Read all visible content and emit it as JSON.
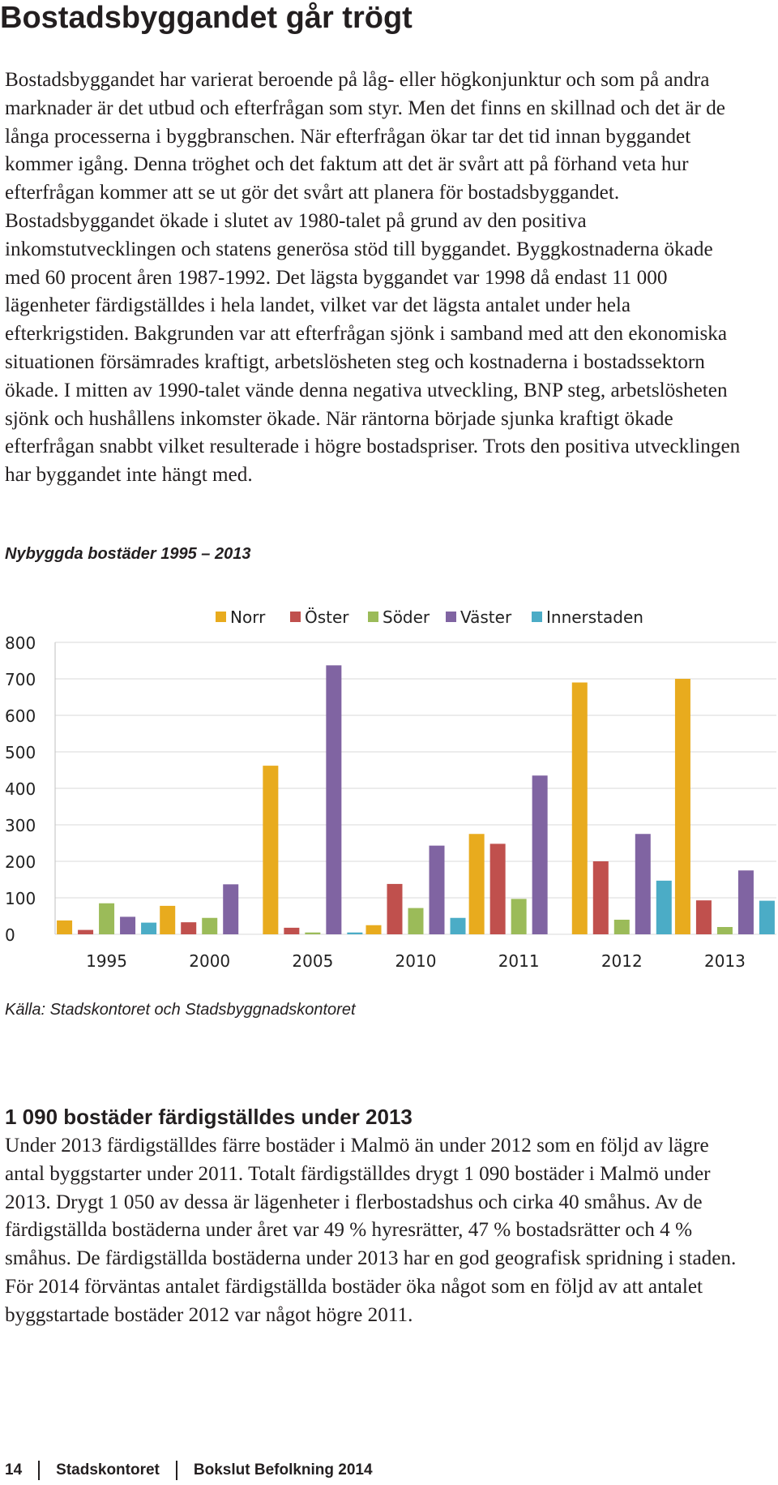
{
  "heading": "Bostadsbyggandet går trögt",
  "paragraph1": "Bostadsbyggandet har varierat beroende på låg- eller högkonjunktur och som på andra marknader är det utbud och efterfrågan som styr. Men det finns en skillnad och det är de långa processerna i byggbranschen. När efterfrågan ökar tar det tid innan byggandet kommer igång. Denna tröghet och det faktum att det är svårt att på förhand veta hur efterfrågan kommer att se ut gör det svårt att planera för bostadsbyggandet. Bostadsbyggandet ökade i slutet av 1980-talet på grund av den positiva inkomstutvecklingen och statens generösa stöd till byggandet. Byggkostnaderna ökade med 60 procent åren 1987-1992. Det lägsta byggandet var 1998 då endast 11 000 lägenheter färdigställdes i hela landet, vilket var det lägsta antalet under hela efterkrigstiden. Bakgrunden var att efterfrågan sjönk i samband med att den ekonomiska situationen försämrades kraftigt, arbetslösheten steg och kostnaderna i bostadssektorn ökade. I mitten av 1990-talet vände denna negativa utveckling, BNP steg, arbetslösheten sjönk och hushållens inkomster ökade. När räntorna började sjunka kraftigt ökade efterfrågan snabbt vilket resulterade i högre bostadspriser. Trots den positiva utvecklingen har byggandet inte hängt med.",
  "figure_title": "Nybyggda bostäder 1995 – 2013",
  "source": "Källa: Stadskontoret och Stadsbyggnadskontoret",
  "section_heading": "1 090 bostäder färdigställdes under 2013",
  "paragraph2": "Under 2013 färdigställdes färre bostäder i Malmö än under 2012 som en följd av lägre antal byggstarter under 2011. Totalt färdigställdes drygt 1 090 bostäder i Malmö under 2013. Drygt 1 050 av dessa är lägenheter i flerbostadshus och cirka 40 småhus. Av de färdigställda bostäderna under året var 49 % hyresrätter, 47 % bostadsrätter och 4 % småhus. De färdigställda bostäderna under 2013 har en god geografisk spridning i staden. För 2014 förväntas antalet färdigställda bostäder öka något som en följd av att antalet byggstartade bostäder 2012 var något högre 2011.",
  "footer": {
    "page_number": "14",
    "organization": "Stadskontoret",
    "publication": "Bokslut Befolkning 2014"
  },
  "chart_data": {
    "type": "bar",
    "categories": [
      "1995",
      "2000",
      "2005",
      "2010",
      "2011",
      "2012",
      "2013"
    ],
    "series": [
      {
        "name": "Norr",
        "color": "#e8ab1e",
        "values": [
          38,
          78,
          462,
          25,
          275,
          690,
          700
        ]
      },
      {
        "name": "Öster",
        "color": "#c0504d",
        "values": [
          12,
          33,
          18,
          138,
          248,
          200,
          93
        ]
      },
      {
        "name": "Söder",
        "color": "#9bbb59",
        "values": [
          85,
          45,
          5,
          72,
          97,
          40,
          20
        ]
      },
      {
        "name": "Väster",
        "color": "#8064a2",
        "values": [
          48,
          137,
          737,
          243,
          435,
          275,
          175
        ]
      },
      {
        "name": "Innerstaden",
        "color": "#4bacc6",
        "values": [
          32,
          0,
          5,
          45,
          0,
          147,
          92
        ]
      }
    ],
    "yticks": [
      "0",
      "100",
      "200",
      "300",
      "400",
      "500",
      "600",
      "700",
      "800"
    ],
    "ylim": [
      0,
      800
    ],
    "grid": true,
    "legend": "top"
  }
}
